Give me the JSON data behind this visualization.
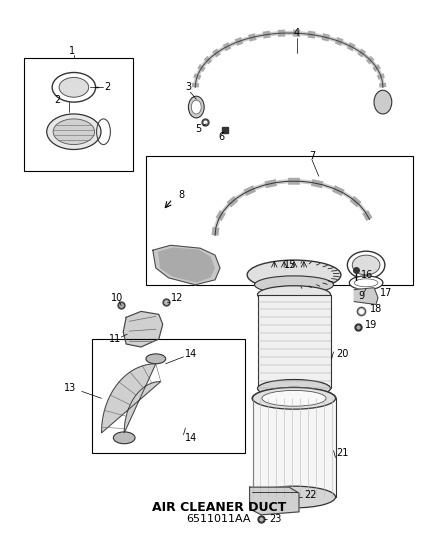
{
  "title": "AIR CLEANER DUCT",
  "part_number": "6511011AA",
  "bg_color": "#ffffff",
  "lc": "#333333",
  "gray1": "#cccccc",
  "gray2": "#888888",
  "gray3": "#aaaaaa",
  "font_size": 7,
  "fig_w": 4.38,
  "fig_h": 5.33,
  "dpi": 100
}
